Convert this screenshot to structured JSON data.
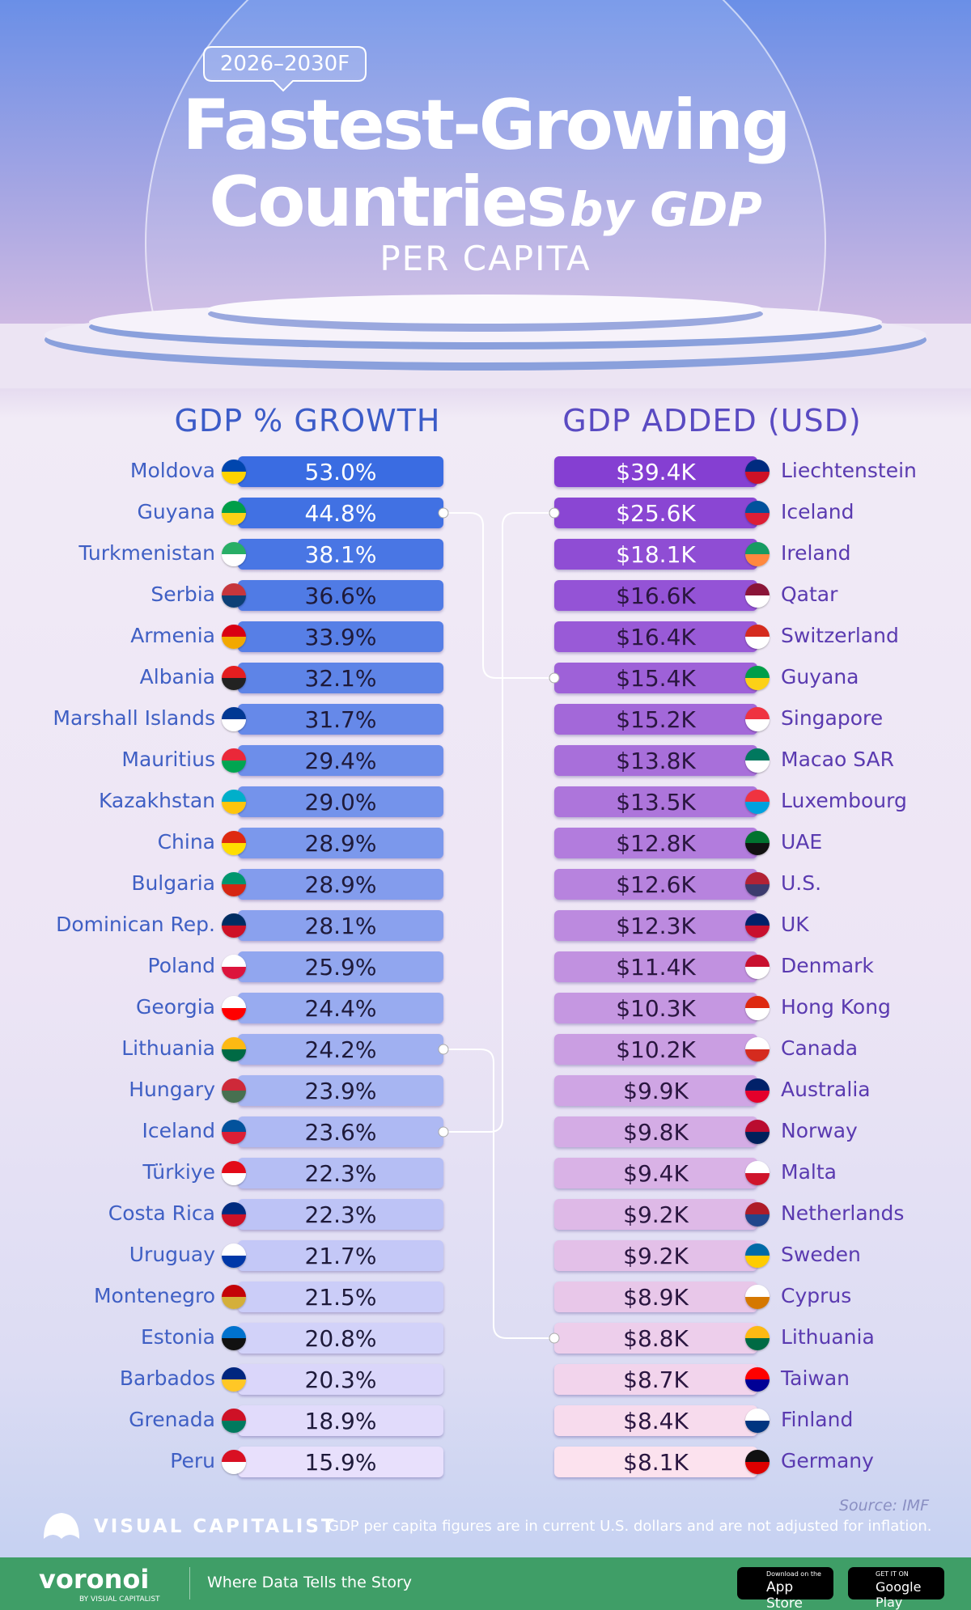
{
  "header": {
    "badge": "2026–2030F",
    "title_line1": "Fastest-Growing",
    "title_line2": "Countries",
    "title_by": "by GDP",
    "subtitle": "PER CAPITA"
  },
  "left": {
    "heading": "GDP % GROWTH",
    "rows": [
      {
        "country": "Moldova",
        "value": "53.0%"
      },
      {
        "country": "Guyana",
        "value": "44.8%"
      },
      {
        "country": "Turkmenistan",
        "value": "38.1%"
      },
      {
        "country": "Serbia",
        "value": "36.6%"
      },
      {
        "country": "Armenia",
        "value": "33.9%"
      },
      {
        "country": "Albania",
        "value": "32.1%"
      },
      {
        "country": "Marshall Islands",
        "value": "31.7%"
      },
      {
        "country": "Mauritius",
        "value": "29.4%"
      },
      {
        "country": "Kazakhstan",
        "value": "29.0%"
      },
      {
        "country": "China",
        "value": "28.9%"
      },
      {
        "country": "Bulgaria",
        "value": "28.9%"
      },
      {
        "country": "Dominican Rep.",
        "value": "28.1%"
      },
      {
        "country": "Poland",
        "value": "25.9%"
      },
      {
        "country": "Georgia",
        "value": "24.4%"
      },
      {
        "country": "Lithuania",
        "value": "24.2%"
      },
      {
        "country": "Hungary",
        "value": "23.9%"
      },
      {
        "country": "Iceland",
        "value": "23.6%"
      },
      {
        "country": "Türkiye",
        "value": "22.3%"
      },
      {
        "country": "Costa Rica",
        "value": "22.3%"
      },
      {
        "country": "Uruguay",
        "value": "21.7%"
      },
      {
        "country": "Montenegro",
        "value": "21.5%"
      },
      {
        "country": "Estonia",
        "value": "20.8%"
      },
      {
        "country": "Barbados",
        "value": "20.3%"
      },
      {
        "country": "Grenada",
        "value": "18.9%"
      },
      {
        "country": "Peru",
        "value": "15.9%"
      }
    ]
  },
  "right": {
    "heading": "GDP ADDED (USD)",
    "rows": [
      {
        "value": "$39.4K",
        "country": "Liechtenstein"
      },
      {
        "value": "$25.6K",
        "country": "Iceland"
      },
      {
        "value": "$18.1K",
        "country": "Ireland"
      },
      {
        "value": "$16.6K",
        "country": "Qatar"
      },
      {
        "value": "$16.4K",
        "country": "Switzerland"
      },
      {
        "value": "$15.4K",
        "country": "Guyana"
      },
      {
        "value": "$15.2K",
        "country": "Singapore"
      },
      {
        "value": "$13.8K",
        "country": "Macao SAR"
      },
      {
        "value": "$13.5K",
        "country": "Luxembourg"
      },
      {
        "value": "$12.8K",
        "country": "UAE"
      },
      {
        "value": "$12.6K",
        "country": "U.S."
      },
      {
        "value": "$12.3K",
        "country": "UK"
      },
      {
        "value": "$11.4K",
        "country": "Denmark"
      },
      {
        "value": "$10.3K",
        "country": "Hong Kong"
      },
      {
        "value": "$10.2K",
        "country": "Canada"
      },
      {
        "value": "$9.9K",
        "country": "Australia"
      },
      {
        "value": "$9.8K",
        "country": "Norway"
      },
      {
        "value": "$9.4K",
        "country": "Malta"
      },
      {
        "value": "$9.2K",
        "country": "Netherlands"
      },
      {
        "value": "$9.2K",
        "country": "Sweden"
      },
      {
        "value": "$8.9K",
        "country": "Cyprus"
      },
      {
        "value": "$8.8K",
        "country": "Lithuania"
      },
      {
        "value": "$8.7K",
        "country": "Taiwan"
      },
      {
        "value": "$8.4K",
        "country": "Finland"
      },
      {
        "value": "$8.1K",
        "country": "Germany"
      }
    ]
  },
  "footer": {
    "source": "Source: IMF",
    "brand": "VISUAL CAPITALIST",
    "note": "GDP per capita figures are in current U.S. dollars and are not adjusted for inflation.",
    "voronoi": "voronoi",
    "voronoi_sub": "BY VISUAL CAPITALIST",
    "tagline": "Where Data Tells the Story",
    "app_store_small": "Download on the",
    "app_store": "App Store",
    "google_small": "GET IT ON",
    "google": "Google Play"
  }
}
